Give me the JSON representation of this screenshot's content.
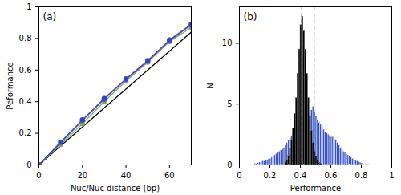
{
  "chart_data": [
    {
      "type": "line",
      "annotation": "(a)",
      "x_label": "Nuc/Nuc distance (bp)",
      "y_label": "Peformance",
      "x": [
        0,
        10,
        20,
        30,
        40,
        50,
        60,
        70
      ],
      "xlim": [
        0,
        70
      ],
      "xticks": [
        0,
        20,
        40,
        60
      ],
      "ylim": [
        0,
        1
      ],
      "yticks": [
        0,
        0.2,
        0.4,
        0.6,
        0.8,
        1
      ],
      "series": [
        {
          "color": "#000000",
          "values": [
            0,
            0.12,
            0.24,
            0.36,
            0.48,
            0.6,
            0.72,
            0.84
          ]
        },
        {
          "color": "#66bb44",
          "marker": "circle",
          "values": [
            0,
            0.13,
            0.26,
            0.4,
            0.53,
            0.65,
            0.78,
            0.87
          ]
        },
        {
          "color": "#aa44aa",
          "marker": "circle",
          "values": [
            0,
            0.14,
            0.28,
            0.415,
            0.54,
            0.655,
            0.785,
            0.885
          ]
        },
        {
          "color": "#3344cc",
          "marker": "circle",
          "values": [
            0,
            0.145,
            0.285,
            0.42,
            0.545,
            0.66,
            0.79,
            0.89
          ]
        }
      ]
    },
    {
      "type": "histogram",
      "annotation": "(b)",
      "x_label": "Performance",
      "y_label": "N",
      "xlim": [
        0,
        1
      ],
      "xticks": [
        0,
        0.2,
        0.4,
        0.6,
        0.8,
        1
      ],
      "ylim": [
        0,
        13
      ],
      "yticks": [
        0,
        5,
        10
      ],
      "bins": [
        0,
        0.01,
        0.02,
        0.03,
        0.04,
        0.05,
        0.06,
        0.07,
        0.08,
        0.09,
        0.1,
        0.11,
        0.12,
        0.13,
        0.14,
        0.15,
        0.16,
        0.17,
        0.18,
        0.19,
        0.2,
        0.21,
        0.22,
        0.23,
        0.24,
        0.25,
        0.26,
        0.27,
        0.28,
        0.29,
        0.3,
        0.31,
        0.32,
        0.33,
        0.34,
        0.35,
        0.36,
        0.37,
        0.38,
        0.39,
        0.4,
        0.41,
        0.42,
        0.43,
        0.44,
        0.45,
        0.46,
        0.47,
        0.48,
        0.49,
        0.5,
        0.51,
        0.52,
        0.53,
        0.54,
        0.55,
        0.56,
        0.57,
        0.58,
        0.59,
        0.6,
        0.61,
        0.62,
        0.63,
        0.64,
        0.65,
        0.66,
        0.67,
        0.68,
        0.69,
        0.7,
        0.71,
        0.72,
        0.73,
        0.74,
        0.75,
        0.76,
        0.77,
        0.78,
        0.79,
        0.8,
        0.81,
        0.82,
        0.83,
        0.84,
        0.85,
        0.86,
        0.87,
        0.88,
        0.89,
        0.9,
        0.91,
        0.92,
        0.93,
        0.94,
        0.95,
        0.96,
        0.97,
        0.98,
        0.99,
        1
      ],
      "series": [
        {
          "color": "#3a55c8",
          "values": [
            0,
            0,
            0,
            0,
            0,
            0,
            0,
            0,
            0,
            0,
            0.1,
            0.1,
            0.15,
            0.2,
            0.2,
            0.3,
            0.3,
            0.4,
            0.4,
            0.5,
            0.5,
            0.6,
            0.7,
            0.8,
            0.9,
            1.0,
            1.1,
            1.2,
            1.3,
            1.4,
            1.6,
            1.8,
            2.0,
            2.2,
            2.4,
            2.6,
            2.9,
            3.1,
            3.4,
            3.6,
            3.8,
            4.0,
            3.5,
            3.2,
            3.0,
            3.6,
            4.1,
            4.5,
            4.8,
            4.3,
            4.0,
            3.7,
            3.5,
            3.3,
            3.1,
            2.9,
            2.7,
            2.6,
            2.5,
            2.4,
            2.3,
            2.3,
            2.1,
            2.0,
            1.8,
            1.6,
            1.4,
            1.3,
            1.1,
            1.0,
            0.9,
            0.8,
            0.7,
            0.6,
            0.5,
            0.4,
            0.35,
            0.3,
            0.25,
            0.2,
            0.15,
            0.1,
            0.1,
            0.05,
            0.05,
            0,
            0,
            0,
            0,
            0,
            0,
            0,
            0,
            0,
            0,
            0,
            0,
            0,
            0,
            0
          ]
        },
        {
          "color": "#000000",
          "values": [
            0,
            0,
            0,
            0,
            0,
            0,
            0,
            0,
            0,
            0,
            0,
            0,
            0,
            0,
            0,
            0,
            0,
            0,
            0,
            0,
            0,
            0,
            0,
            0,
            0,
            0,
            0,
            0,
            0,
            0,
            0.2,
            0.4,
            0.8,
            1.3,
            2,
            3,
            4.2,
            5.5,
            7.5,
            9.5,
            11.5,
            12.2,
            11,
            9.5,
            7.5,
            5.5,
            4,
            2.8,
            1.8,
            1.1,
            0.7,
            0.4,
            0.2,
            0.1,
            0,
            0,
            0,
            0,
            0,
            0,
            0,
            0,
            0,
            0,
            0,
            0,
            0,
            0,
            0,
            0,
            0,
            0,
            0,
            0,
            0,
            0,
            0,
            0,
            0,
            0,
            0,
            0,
            0,
            0,
            0,
            0,
            0,
            0,
            0,
            0,
            0,
            0,
            0,
            0,
            0,
            0,
            0,
            0,
            0,
            0
          ]
        }
      ],
      "reference_lines": [
        {
          "x": 0.41,
          "color": "#000000",
          "line_style": "dashed"
        },
        {
          "x": 0.49,
          "color": "#3a55c8",
          "line_style": "dashed"
        }
      ]
    }
  ]
}
